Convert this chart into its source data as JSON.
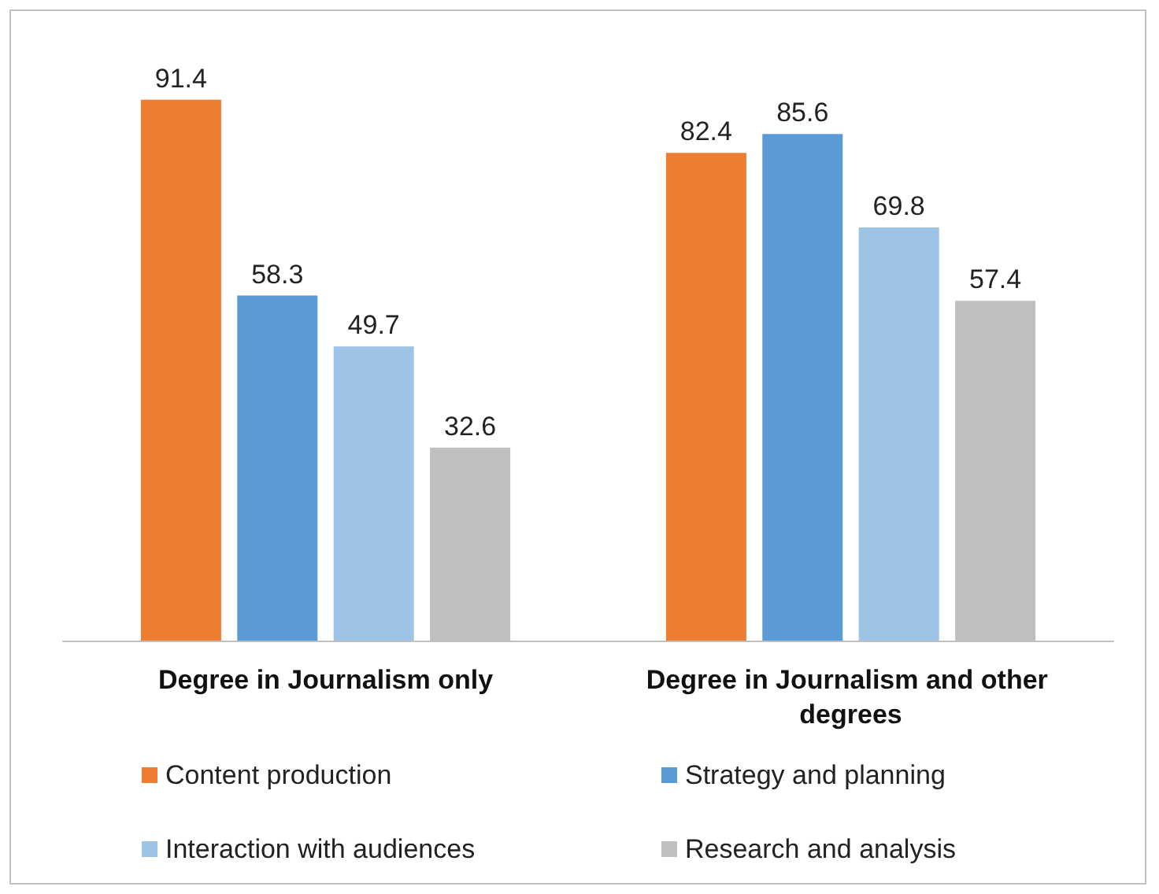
{
  "chart_data": {
    "type": "bar",
    "categories": [
      "Degree in Journalism only",
      "Degree in Journalism and other degrees"
    ],
    "series": [
      {
        "name": "Content production",
        "color": "#ed7d31",
        "values": [
          91.4,
          82.4
        ]
      },
      {
        "name": "Strategy and planning",
        "color": "#5b9bd5",
        "values": [
          58.3,
          85.6
        ]
      },
      {
        "name": "Interaction with audiences",
        "color": "#9dc3e6",
        "values": [
          49.7,
          69.8
        ]
      },
      {
        "name": "Research and analysis",
        "color": "#bfbfbf",
        "values": [
          32.6,
          57.4
        ]
      }
    ],
    "data_labels": true,
    "grid": false,
    "legend": "bottom"
  }
}
